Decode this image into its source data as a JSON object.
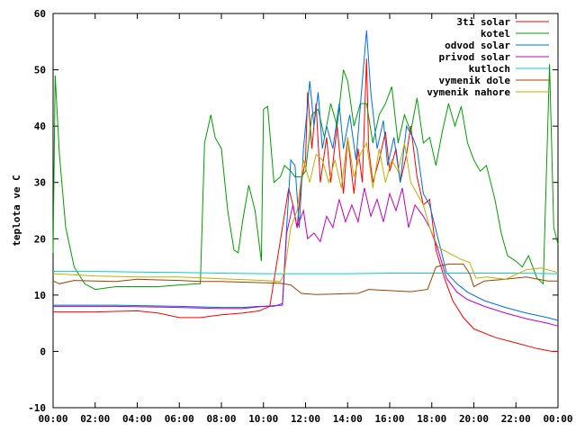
{
  "chart_data": {
    "type": "line",
    "title": "",
    "xlabel": "",
    "ylabel": "teplota ve C",
    "xlim": [
      0,
      24
    ],
    "ylim": [
      -10,
      60
    ],
    "grid": false,
    "legend_position": "top-right",
    "x_ticks": [
      "00:00",
      "02:00",
      "04:00",
      "06:00",
      "08:00",
      "10:00",
      "12:00",
      "14:00",
      "16:00",
      "18:00",
      "20:00",
      "22:00",
      "00:00"
    ],
    "y_ticks": [
      "-10",
      "0",
      "10",
      "20",
      "30",
      "40",
      "50",
      "60"
    ],
    "series": [
      {
        "name": "3ti solar",
        "color": "#ff0000",
        "points": [
          [
            0,
            7
          ],
          [
            2,
            7
          ],
          [
            4,
            7.2
          ],
          [
            5,
            6.8
          ],
          [
            6,
            6
          ],
          [
            7,
            6
          ],
          [
            8,
            6.5
          ],
          [
            9,
            6.8
          ],
          [
            9.8,
            7.2
          ],
          [
            10.3,
            8
          ],
          [
            10.6,
            15
          ],
          [
            10.9,
            22
          ],
          [
            11.2,
            29
          ],
          [
            11.4,
            26
          ],
          [
            11.6,
            22
          ],
          [
            11.8,
            30
          ],
          [
            12,
            34
          ],
          [
            12.1,
            46
          ],
          [
            12.3,
            36
          ],
          [
            12.5,
            44
          ],
          [
            12.7,
            30
          ],
          [
            13,
            38
          ],
          [
            13.2,
            30
          ],
          [
            13.5,
            40
          ],
          [
            13.8,
            28
          ],
          [
            14,
            38
          ],
          [
            14.3,
            28
          ],
          [
            14.5,
            36
          ],
          [
            14.7,
            30
          ],
          [
            14.8,
            41
          ],
          [
            14.9,
            52
          ],
          [
            15,
            36
          ],
          [
            15.2,
            30
          ],
          [
            15.5,
            34
          ],
          [
            15.8,
            39
          ],
          [
            16,
            32
          ],
          [
            16.3,
            36
          ],
          [
            16.5,
            30
          ],
          [
            16.8,
            35
          ],
          [
            17,
            40
          ],
          [
            17.3,
            31
          ],
          [
            17.6,
            26
          ],
          [
            17.9,
            27
          ],
          [
            18.2,
            18
          ],
          [
            18.6,
            13
          ],
          [
            19,
            9
          ],
          [
            19.5,
            6
          ],
          [
            20,
            4
          ],
          [
            21,
            2.5
          ],
          [
            22,
            1.5
          ],
          [
            23,
            0.5
          ],
          [
            23.7,
            0
          ],
          [
            24,
            0
          ]
        ]
      },
      {
        "name": "kotel",
        "color": "#00a000",
        "points": [
          [
            0,
            17.5
          ],
          [
            0.1,
            49
          ],
          [
            0.3,
            35
          ],
          [
            0.6,
            22
          ],
          [
            1,
            15
          ],
          [
            1.5,
            12
          ],
          [
            2,
            11
          ],
          [
            3,
            11.5
          ],
          [
            4,
            11.5
          ],
          [
            5,
            11.5
          ],
          [
            6,
            11.8
          ],
          [
            6.9,
            12
          ],
          [
            7,
            12
          ],
          [
            7.2,
            37
          ],
          [
            7.5,
            42
          ],
          [
            7.7,
            38
          ],
          [
            8,
            36
          ],
          [
            8.3,
            25
          ],
          [
            8.6,
            18
          ],
          [
            8.8,
            17.5
          ],
          [
            9,
            23
          ],
          [
            9.3,
            29.5
          ],
          [
            9.6,
            25
          ],
          [
            9.9,
            16
          ],
          [
            10,
            43
          ],
          [
            10.2,
            43.5
          ],
          [
            10.5,
            30
          ],
          [
            10.8,
            31
          ],
          [
            11,
            33
          ],
          [
            11.3,
            32
          ],
          [
            11.5,
            31
          ],
          [
            11.8,
            31
          ],
          [
            12,
            32
          ],
          [
            12.3,
            42
          ],
          [
            12.6,
            43
          ],
          [
            12.9,
            38
          ],
          [
            13.2,
            44
          ],
          [
            13.5,
            40
          ],
          [
            13.8,
            50
          ],
          [
            14,
            48
          ],
          [
            14.3,
            40
          ],
          [
            14.6,
            44
          ],
          [
            14.9,
            44
          ],
          [
            15.2,
            37
          ],
          [
            15.5,
            42
          ],
          [
            15.8,
            44
          ],
          [
            16.1,
            47
          ],
          [
            16.4,
            37
          ],
          [
            16.7,
            42
          ],
          [
            17,
            39
          ],
          [
            17.3,
            45
          ],
          [
            17.6,
            37
          ],
          [
            17.9,
            38
          ],
          [
            18.2,
            33
          ],
          [
            18.5,
            39
          ],
          [
            18.8,
            44
          ],
          [
            19.1,
            40
          ],
          [
            19.4,
            43.5
          ],
          [
            19.7,
            37
          ],
          [
            20,
            34
          ],
          [
            20.3,
            32
          ],
          [
            20.6,
            33
          ],
          [
            21,
            27
          ],
          [
            21.3,
            21
          ],
          [
            21.6,
            17
          ],
          [
            22,
            16
          ],
          [
            22.3,
            15
          ],
          [
            22.6,
            17
          ],
          [
            23,
            13
          ],
          [
            23.3,
            12
          ],
          [
            23.6,
            51
          ],
          [
            23.8,
            22
          ],
          [
            24,
            19
          ]
        ]
      },
      {
        "name": "odvod solar",
        "color": "#0070e0",
        "points": [
          [
            0,
            8.2
          ],
          [
            3,
            8.2
          ],
          [
            6,
            8
          ],
          [
            8,
            7.8
          ],
          [
            9,
            7.8
          ],
          [
            9.8,
            8
          ],
          [
            10.5,
            8
          ],
          [
            10.9,
            8.5
          ],
          [
            11.1,
            22
          ],
          [
            11.3,
            34
          ],
          [
            11.5,
            33
          ],
          [
            11.7,
            22
          ],
          [
            11.9,
            36
          ],
          [
            12.2,
            48
          ],
          [
            12.4,
            40
          ],
          [
            12.6,
            46
          ],
          [
            12.8,
            36
          ],
          [
            13,
            40
          ],
          [
            13.3,
            36
          ],
          [
            13.6,
            44
          ],
          [
            13.8,
            36
          ],
          [
            14.1,
            42
          ],
          [
            14.4,
            34
          ],
          [
            14.7,
            48
          ],
          [
            14.9,
            57
          ],
          [
            15.1,
            46
          ],
          [
            15.4,
            36
          ],
          [
            15.7,
            41
          ],
          [
            15.9,
            33
          ],
          [
            16.2,
            38
          ],
          [
            16.5,
            30
          ],
          [
            16.8,
            40
          ],
          [
            17.1,
            38
          ],
          [
            17.3,
            36
          ],
          [
            17.6,
            28
          ],
          [
            17.9,
            26
          ],
          [
            18.3,
            20
          ],
          [
            18.7,
            14
          ],
          [
            19.2,
            12
          ],
          [
            19.7,
            10.5
          ],
          [
            20.5,
            9
          ],
          [
            21.5,
            7.8
          ],
          [
            22.5,
            6.8
          ],
          [
            23.5,
            6
          ],
          [
            24,
            5.5
          ]
        ]
      },
      {
        "name": "privod solar",
        "color": "#c000c0",
        "points": [
          [
            0,
            8
          ],
          [
            3,
            8
          ],
          [
            6,
            7.8
          ],
          [
            8,
            7.6
          ],
          [
            9,
            7.6
          ],
          [
            10,
            8
          ],
          [
            10.9,
            8.2
          ],
          [
            11.1,
            21
          ],
          [
            11.4,
            26
          ],
          [
            11.6,
            22
          ],
          [
            11.9,
            25
          ],
          [
            12.1,
            20
          ],
          [
            12.4,
            21
          ],
          [
            12.7,
            19.5
          ],
          [
            13,
            24
          ],
          [
            13.3,
            22
          ],
          [
            13.6,
            27
          ],
          [
            13.9,
            23
          ],
          [
            14.2,
            26
          ],
          [
            14.5,
            23
          ],
          [
            14.8,
            29
          ],
          [
            15.1,
            24
          ],
          [
            15.4,
            27
          ],
          [
            15.7,
            23
          ],
          [
            16,
            28
          ],
          [
            16.3,
            25
          ],
          [
            16.6,
            29
          ],
          [
            16.9,
            22
          ],
          [
            17.2,
            26
          ],
          [
            17.6,
            24
          ],
          [
            17.9,
            22
          ],
          [
            18.3,
            18
          ],
          [
            18.7,
            13
          ],
          [
            19.2,
            10.5
          ],
          [
            19.7,
            9.2
          ],
          [
            20.5,
            8
          ],
          [
            21.5,
            6.8
          ],
          [
            22.5,
            5.8
          ],
          [
            23.5,
            5
          ],
          [
            24,
            4.5
          ]
        ]
      },
      {
        "name": "kutloch",
        "color": "#00d0d0",
        "points": [
          [
            0,
            14.2
          ],
          [
            2,
            14.2
          ],
          [
            4,
            14.1
          ],
          [
            6,
            14
          ],
          [
            8,
            13.9
          ],
          [
            10,
            13.8
          ],
          [
            12,
            13.8
          ],
          [
            14,
            13.8
          ],
          [
            16,
            13.9
          ],
          [
            18,
            13.9
          ],
          [
            20,
            13.9
          ],
          [
            22,
            13.9
          ],
          [
            24,
            13.8
          ]
        ]
      },
      {
        "name": "vymenik dole",
        "color": "#a04000",
        "points": [
          [
            0,
            12.5
          ],
          [
            0.3,
            12
          ],
          [
            1,
            12.6
          ],
          [
            2,
            12.5
          ],
          [
            3,
            12.4
          ],
          [
            4,
            12.8
          ],
          [
            5,
            12.7
          ],
          [
            6,
            12.6
          ],
          [
            7,
            12.4
          ],
          [
            8,
            12.4
          ],
          [
            9,
            12.3
          ],
          [
            10,
            12.2
          ],
          [
            10.8,
            12.1
          ],
          [
            11.3,
            11.8
          ],
          [
            11.8,
            10.3
          ],
          [
            12.5,
            10.1
          ],
          [
            13.5,
            10.2
          ],
          [
            14.5,
            10.3
          ],
          [
            15,
            11
          ],
          [
            16,
            10.8
          ],
          [
            17,
            10.6
          ],
          [
            17.8,
            11
          ],
          [
            18.2,
            15
          ],
          [
            18.8,
            15.5
          ],
          [
            19.5,
            15.5
          ],
          [
            19.8,
            13.8
          ],
          [
            20,
            11.5
          ],
          [
            20.5,
            12.5
          ],
          [
            21.5,
            12.8
          ],
          [
            22.5,
            13.2
          ],
          [
            23.5,
            12.5
          ],
          [
            24,
            12.5
          ]
        ]
      },
      {
        "name": "vymenik nahore",
        "color": "#c0b000",
        "points": [
          [
            0,
            13.8
          ],
          [
            2,
            13.4
          ],
          [
            4,
            13.2
          ],
          [
            6,
            13.2
          ],
          [
            8,
            12.9
          ],
          [
            10,
            12.6
          ],
          [
            10.8,
            12.4
          ],
          [
            11,
            14
          ],
          [
            11.3,
            22
          ],
          [
            11.6,
            25
          ],
          [
            11.9,
            34
          ],
          [
            12.2,
            30
          ],
          [
            12.5,
            35
          ],
          [
            12.8,
            34
          ],
          [
            13.1,
            30
          ],
          [
            13.4,
            34
          ],
          [
            13.7,
            29
          ],
          [
            14,
            38
          ],
          [
            14.3,
            31
          ],
          [
            14.6,
            35
          ],
          [
            14.9,
            37
          ],
          [
            15.2,
            29
          ],
          [
            15.5,
            36
          ],
          [
            15.8,
            30
          ],
          [
            16.1,
            34
          ],
          [
            16.4,
            32
          ],
          [
            16.7,
            37
          ],
          [
            17,
            30
          ],
          [
            17.3,
            28
          ],
          [
            17.6,
            26
          ],
          [
            17.9,
            22
          ],
          [
            18.3,
            18.5
          ],
          [
            18.8,
            17.5
          ],
          [
            19.3,
            16.5
          ],
          [
            19.8,
            15.8
          ],
          [
            20.1,
            13
          ],
          [
            20.6,
            13.2
          ],
          [
            21.5,
            12.8
          ],
          [
            22.5,
            14.5
          ],
          [
            23.2,
            14.8
          ],
          [
            24,
            14
          ]
        ]
      }
    ]
  }
}
